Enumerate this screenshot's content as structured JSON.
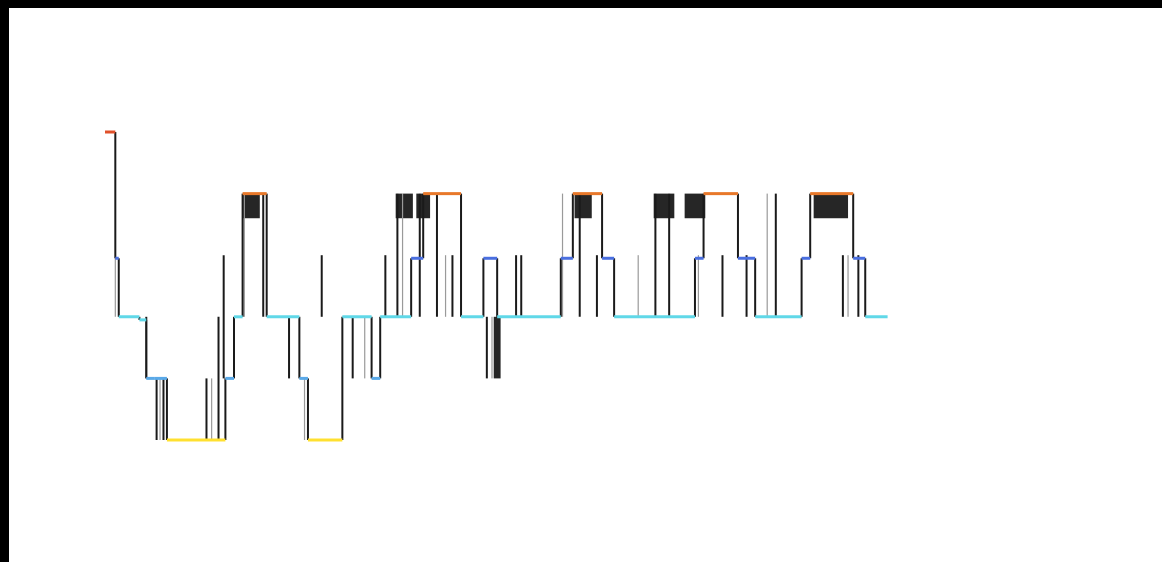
{
  "chart_data": {
    "type": "line",
    "step": true,
    "title": "",
    "xlabel": "",
    "ylabel": "",
    "xlim": [
      0,
      1000
    ],
    "ylim": [
      0,
      5
    ],
    "grid": false,
    "levels": [
      {
        "level": 5,
        "color": "#e0502a"
      },
      {
        "level": 4,
        "color": "#e8782a"
      },
      {
        "level": 3,
        "color": "#4a6fe0"
      },
      {
        "level": 2,
        "color": "#60d8e8"
      },
      {
        "level": 1,
        "color": "#5aa9e8"
      },
      {
        "level": 0,
        "color": "#ffe030"
      }
    ],
    "segments": [
      {
        "x0": 0,
        "x1": 12,
        "y": 5
      },
      {
        "x0": 12,
        "x1": 16,
        "y": 2.95
      },
      {
        "x0": 16,
        "x1": 40,
        "y": 2
      },
      {
        "x0": 40,
        "x1": 48,
        "y": 1.95
      },
      {
        "x0": 48,
        "x1": 58,
        "y": 1
      },
      {
        "x0": 58,
        "x1": 72,
        "y": 1
      },
      {
        "x0": 72,
        "x1": 140,
        "y": 0
      },
      {
        "x0": 140,
        "x1": 150,
        "y": 1
      },
      {
        "x0": 150,
        "x1": 160,
        "y": 2
      },
      {
        "x0": 160,
        "x1": 188,
        "y": 4
      },
      {
        "x0": 188,
        "x1": 226,
        "y": 2
      },
      {
        "x0": 226,
        "x1": 236,
        "y": 1
      },
      {
        "x0": 236,
        "x1": 276,
        "y": 0
      },
      {
        "x0": 276,
        "x1": 310,
        "y": 2
      },
      {
        "x0": 310,
        "x1": 320,
        "y": 1
      },
      {
        "x0": 320,
        "x1": 356,
        "y": 2
      },
      {
        "x0": 356,
        "x1": 370,
        "y": 2.95
      },
      {
        "x0": 370,
        "x1": 414,
        "y": 4
      },
      {
        "x0": 414,
        "x1": 440,
        "y": 2
      },
      {
        "x0": 440,
        "x1": 456,
        "y": 2.95
      },
      {
        "x0": 456,
        "x1": 500,
        "y": 2
      },
      {
        "x0": 500,
        "x1": 530,
        "y": 2
      },
      {
        "x0": 530,
        "x1": 544,
        "y": 2.95
      },
      {
        "x0": 544,
        "x1": 578,
        "y": 4
      },
      {
        "x0": 578,
        "x1": 592,
        "y": 2.95
      },
      {
        "x0": 592,
        "x1": 686,
        "y": 2
      },
      {
        "x0": 686,
        "x1": 696,
        "y": 2.95
      },
      {
        "x0": 696,
        "x1": 736,
        "y": 4
      },
      {
        "x0": 736,
        "x1": 756,
        "y": 2.95
      },
      {
        "x0": 756,
        "x1": 810,
        "y": 2
      },
      {
        "x0": 810,
        "x1": 820,
        "y": 2.95
      },
      {
        "x0": 820,
        "x1": 870,
        "y": 4
      },
      {
        "x0": 870,
        "x1": 884,
        "y": 2.95
      },
      {
        "x0": 884,
        "x1": 910,
        "y": 2
      }
    ],
    "spikes": [
      {
        "x": 12,
        "y0": 2,
        "y1": 5
      },
      {
        "x": 48,
        "y0": 1,
        "y1": 2
      },
      {
        "x": 60,
        "y0": 0,
        "y1": 1
      },
      {
        "x": 64,
        "y0": 0,
        "y1": 1
      },
      {
        "x": 68,
        "y0": 0,
        "y1": 1
      },
      {
        "x": 118,
        "y0": 0,
        "y1": 1
      },
      {
        "x": 124,
        "y0": 0,
        "y1": 1
      },
      {
        "x": 132,
        "y0": 0,
        "y1": 2
      },
      {
        "x": 138,
        "y0": 1,
        "y1": 3
      },
      {
        "x": 162,
        "y0": 2,
        "y1": 4
      },
      {
        "x": 184,
        "y0": 2,
        "y1": 4
      },
      {
        "x": 214,
        "y0": 1,
        "y1": 2
      },
      {
        "x": 232,
        "y0": 0,
        "y1": 1
      },
      {
        "x": 252,
        "y0": 2,
        "y1": 3
      },
      {
        "x": 288,
        "y0": 1,
        "y1": 2
      },
      {
        "x": 302,
        "y0": 1,
        "y1": 2
      },
      {
        "x": 326,
        "y0": 2,
        "y1": 3
      },
      {
        "x": 340,
        "y0": 2,
        "y1": 4
      },
      {
        "x": 346,
        "y0": 2,
        "y1": 4
      },
      {
        "x": 366,
        "y0": 2,
        "y1": 4
      },
      {
        "x": 386,
        "y0": 2,
        "y1": 4
      },
      {
        "x": 396,
        "y0": 2,
        "y1": 3
      },
      {
        "x": 404,
        "y0": 2,
        "y1": 3
      },
      {
        "x": 444,
        "y0": 1,
        "y1": 2
      },
      {
        "x": 450,
        "y0": 1,
        "y1": 2
      },
      {
        "x": 478,
        "y0": 2,
        "y1": 3
      },
      {
        "x": 484,
        "y0": 2,
        "y1": 3
      },
      {
        "x": 532,
        "y0": 2,
        "y1": 4
      },
      {
        "x": 552,
        "y0": 2,
        "y1": 4
      },
      {
        "x": 572,
        "y0": 2,
        "y1": 3
      },
      {
        "x": 620,
        "y0": 2,
        "y1": 3
      },
      {
        "x": 640,
        "y0": 2,
        "y1": 4
      },
      {
        "x": 656,
        "y0": 2,
        "y1": 4
      },
      {
        "x": 690,
        "y0": 2,
        "y1": 3
      },
      {
        "x": 718,
        "y0": 2,
        "y1": 3
      },
      {
        "x": 746,
        "y0": 2,
        "y1": 3
      },
      {
        "x": 770,
        "y0": 2,
        "y1": 4
      },
      {
        "x": 780,
        "y0": 2,
        "y1": 4
      },
      {
        "x": 858,
        "y0": 2,
        "y1": 3
      },
      {
        "x": 864,
        "y0": 2,
        "y1": 3
      },
      {
        "x": 876,
        "y0": 2,
        "y1": 3
      }
    ],
    "blocks": [
      {
        "x0": 160,
        "x1": 180,
        "y0": 3.6,
        "y1": 4
      },
      {
        "x0": 338,
        "x1": 358,
        "y0": 3.6,
        "y1": 4
      },
      {
        "x0": 362,
        "x1": 378,
        "y0": 3.6,
        "y1": 4
      },
      {
        "x0": 546,
        "x1": 566,
        "y0": 3.6,
        "y1": 4
      },
      {
        "x0": 638,
        "x1": 662,
        "y0": 3.6,
        "y1": 4
      },
      {
        "x0": 674,
        "x1": 698,
        "y0": 3.6,
        "y1": 4
      },
      {
        "x0": 824,
        "x1": 864,
        "y0": 3.6,
        "y1": 4
      },
      {
        "x0": 452,
        "x1": 460,
        "y0": 1,
        "y1": 2
      }
    ]
  }
}
